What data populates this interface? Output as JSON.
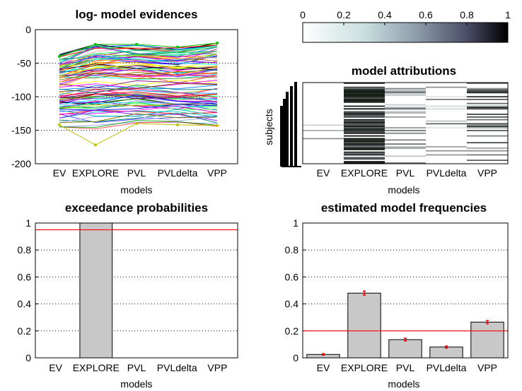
{
  "chart_data": [
    {
      "id": "evidences",
      "type": "line",
      "title": "log- model evidences",
      "xlabel": "models",
      "ylabel": "",
      "categories": [
        "EV",
        "EXPLORE",
        "PVL",
        "PVLdelta",
        "VPP"
      ],
      "ylim": [
        -200,
        0
      ],
      "yticks": [
        0,
        -50,
        -100,
        -150,
        -200
      ],
      "grid": "horizontal dotted",
      "n_series_approx": 100,
      "band": {
        "description": "one line per subject",
        "upper": [
          -37,
          -22,
          -23,
          -27,
          -20
        ],
        "lower": [
          -145,
          -148,
          -145,
          -145,
          -150
        ]
      },
      "series": [
        {
          "values": [
            -40,
            -22,
            -22,
            -26,
            -20
          ]
        },
        {
          "values": [
            -142,
            -172,
            -140,
            -142,
            -143
          ]
        }
      ]
    },
    {
      "id": "colorbar",
      "type": "heatmap",
      "title": "",
      "colormap": "bone (reversed)",
      "ticks": [
        "0",
        "0.2",
        "0.4",
        "0.6",
        "0.8",
        "1"
      ]
    },
    {
      "id": "attributions",
      "type": "heatmap",
      "title": "model attributions",
      "xlabel": "models",
      "ylabel": "subjects",
      "categories": [
        "EV",
        "EXPLORE",
        "PVL",
        "PVLdelta",
        "VPP"
      ],
      "mean_attribution": [
        0.03,
        0.48,
        0.14,
        0.08,
        0.27
      ]
    },
    {
      "id": "exceedance",
      "type": "bar",
      "title": "exceedance probabilities",
      "xlabel": "models",
      "ylabel": "",
      "categories": [
        "EV",
        "EXPLORE",
        "PVL",
        "PVLdelta",
        "VPP"
      ],
      "values": [
        0,
        1,
        0,
        0,
        0
      ],
      "ylim": [
        0,
        1
      ],
      "yticks": [
        "0",
        "0.2",
        "0.4",
        "0.6",
        "0.8",
        "1"
      ],
      "reference_line": 0.95,
      "reference_color": "#ff0000",
      "bar_color": "#c8c8c8",
      "grid": "horizontal dotted"
    },
    {
      "id": "frequencies",
      "type": "bar",
      "title": "estimated model frequencies",
      "xlabel": "models",
      "ylabel": "",
      "categories": [
        "EV",
        "EXPLORE",
        "PVL",
        "PVLdelta",
        "VPP"
      ],
      "values": [
        0.025,
        0.48,
        0.135,
        0.08,
        0.265
      ],
      "errors": [
        0.006,
        0.015,
        0.01,
        0.008,
        0.012
      ],
      "ylim": [
        0,
        1
      ],
      "yticks": [
        "0",
        "0.2",
        "0.4",
        "0.6",
        "0.8",
        "1"
      ],
      "reference_line": 0.2,
      "reference_color": "#ff0000",
      "bar_color": "#c8c8c8",
      "grid": "horizontal dotted"
    }
  ]
}
